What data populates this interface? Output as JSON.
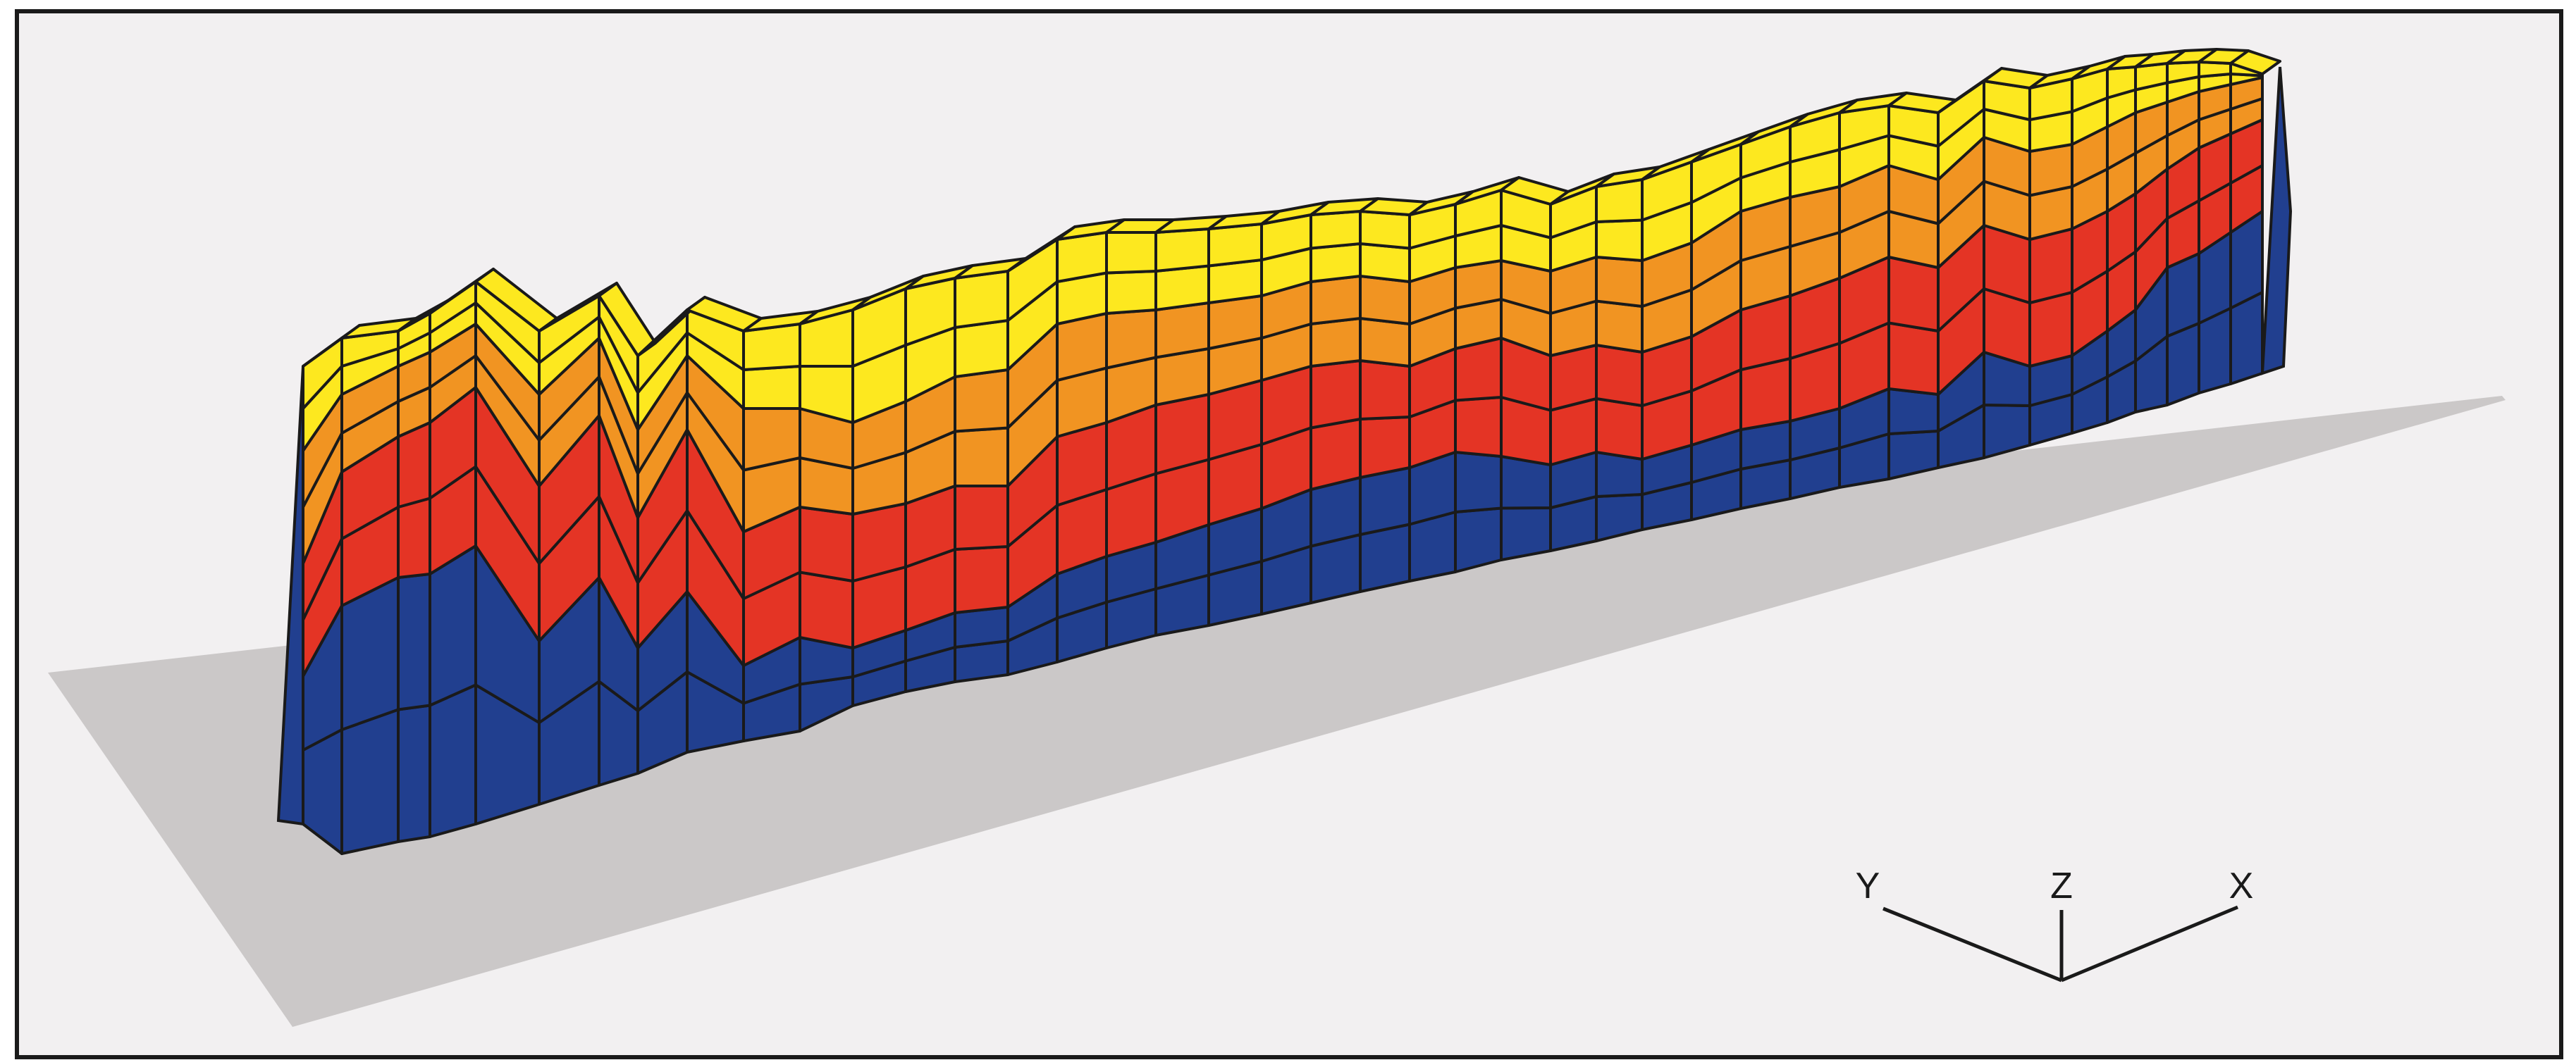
{
  "figure": {
    "background_color": "#f2f0f1",
    "border_color": "#1a1a1a",
    "base_plane_color": "#cbc8c8",
    "outline_color": "#1a1a1a"
  },
  "layers": [
    {
      "name": "blue",
      "color": "#213f8f"
    },
    {
      "name": "red",
      "color": "#e43425"
    },
    {
      "name": "orange",
      "color": "#f19422"
    },
    {
      "name": "yellow",
      "color": "#fde81f"
    }
  ],
  "axes": {
    "y_label": "Y",
    "z_label": "Z",
    "x_label": "X"
  }
}
